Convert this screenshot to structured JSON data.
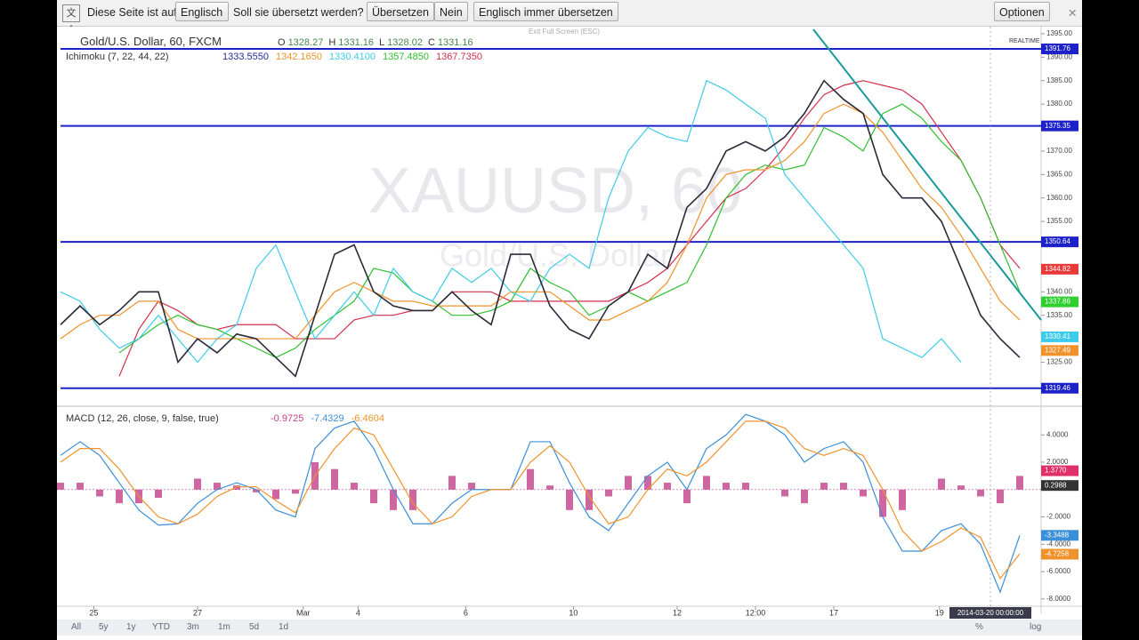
{
  "translate_bar": {
    "prompt": "Diese Seite ist auf",
    "language": "Englisch",
    "question": "Soll sie übersetzt werden?",
    "translate": "Übersetzen",
    "no": "Nein",
    "always": "Englisch immer übersetzen",
    "options": "Optionen"
  },
  "range_buttons": [
    "All",
    "5y",
    "1y",
    "YTD",
    "3m",
    "1m",
    "5d",
    "1d"
  ],
  "scale_buttons": [
    "%",
    "log"
  ],
  "chart_data": [
    {
      "type": "line",
      "title": "Gold/U.S. Dollar, 60, FXCM",
      "watermark": "XAUUSD, 60",
      "watermark_sub": "Gold/U.S. Dollar",
      "exit_fullscreen": "Exit Full Screen (ESC)",
      "realtime": "REALTIME",
      "ohlc": [
        {
          "label": "O",
          "value": "1328.27"
        },
        {
          "label": "H",
          "value": "1331.16"
        },
        {
          "label": "L",
          "value": "1328.02"
        },
        {
          "label": "C",
          "value": "1331.16"
        }
      ],
      "indicator": {
        "title": "Ichimoku (7, 22, 44, 22)",
        "values": [
          {
            "value": "1333.5550",
            "color": "#1f2f9a"
          },
          {
            "value": "1342.1650",
            "color": "#f0922b"
          },
          {
            "value": "1330.4100",
            "color": "#3ccbe8"
          },
          {
            "value": "1357.4850",
            "color": "#2fbf2f"
          },
          {
            "value": "1367.7350",
            "color": "#d22f4a"
          }
        ]
      },
      "xlim": [
        0,
        50
      ],
      "ylim": [
        1316,
        1396.5
      ],
      "xticks": [
        {
          "value": 1.7,
          "label": "25"
        },
        {
          "value": 7,
          "label": "27"
        },
        {
          "value": 12.4,
          "label": "Mar"
        },
        {
          "value": 15.2,
          "label": "4"
        },
        {
          "value": 20.7,
          "label": "6"
        },
        {
          "value": 26.2,
          "label": "10"
        },
        {
          "value": 31.5,
          "label": "12"
        },
        {
          "value": 35.5,
          "label": "12:00"
        },
        {
          "value": 39.5,
          "label": "17"
        },
        {
          "value": 44.9,
          "label": "19"
        }
      ],
      "crosshair": {
        "value": 47.5,
        "label": "2014-03-20 00:00:00"
      },
      "yticks": [
        {
          "value": 1325,
          "label": "1325.00"
        },
        {
          "value": 1330,
          "label": "1330.00"
        },
        {
          "value": 1335,
          "label": "1335.00"
        },
        {
          "value": 1340,
          "label": "1340.00"
        },
        {
          "value": 1345,
          "label": "1345.00"
        },
        {
          "value": 1350,
          "label": "1350.00"
        },
        {
          "value": 1355,
          "label": "1355.00"
        },
        {
          "value": 1360,
          "label": "1360.00"
        },
        {
          "value": 1365,
          "label": "1365.00"
        },
        {
          "value": 1370,
          "label": "1370.00"
        },
        {
          "value": 1375,
          "label": "1375.00"
        },
        {
          "value": 1380,
          "label": "1380.00"
        },
        {
          "value": 1385,
          "label": "1385.00"
        },
        {
          "value": 1390,
          "label": "1390.00"
        },
        {
          "value": 1395,
          "label": "1395.00"
        }
      ],
      "levels": [
        {
          "value": 1391.76,
          "color": "#1c22c8"
        },
        {
          "value": 1375.35,
          "color": "#1c22c8"
        },
        {
          "value": 1350.64,
          "color": "#1c22c8"
        },
        {
          "value": 1319.46,
          "color": "#1c22c8"
        }
      ],
      "price_labels": [
        {
          "value": 1344.82,
          "color": "#e83a3a"
        },
        {
          "value": 1337.86,
          "color": "#2fcf2f"
        },
        {
          "value": 1330.41,
          "color": "#3ccbe8"
        },
        {
          "value": 1327.49,
          "color": "#f0922b"
        }
      ],
      "series": [
        {
          "color": "#d22f4a",
          "values": [
            null,
            null,
            null,
            1322,
            1332,
            1338,
            1336,
            1333,
            1332,
            1333,
            1333,
            1333,
            1330,
            1330,
            1330,
            1334,
            1335,
            1335,
            1336,
            1336,
            1340,
            1340,
            1340,
            1338,
            1338,
            1338,
            1338,
            1338,
            1338,
            1340,
            1342,
            1345,
            1350,
            1355,
            1360,
            1362,
            1366,
            1371,
            1377,
            1382,
            1384,
            1385,
            1384,
            1383,
            1380,
            1374,
            1368,
            1360,
            1350,
            1345
          ]
        },
        {
          "color": "#2fbf2f",
          "values": [
            null,
            null,
            null,
            1327,
            1330,
            1333,
            1335,
            1333,
            1332,
            1330,
            1328,
            1326,
            1328,
            1332,
            1335,
            1338,
            1345,
            1344,
            1340,
            1338,
            1335,
            1335,
            1336,
            1338,
            1345,
            1342,
            1340,
            1335,
            1337,
            1340,
            1338,
            1340,
            1342,
            1350,
            1360,
            1365,
            1367,
            1366,
            1367,
            1375,
            1373,
            1370,
            1378,
            1380,
            1377,
            1372,
            1368,
            1360,
            1350,
            1340
          ]
        },
        {
          "color": "#3ccbe8",
          "values": [
            1340,
            1338,
            1332,
            1328,
            1330,
            1335,
            1330,
            1325,
            1330,
            1333,
            1345,
            1350,
            1340,
            1330,
            1335,
            1340,
            1335,
            1345,
            1340,
            1338,
            1345,
            1342,
            1345,
            1340,
            1338,
            1345,
            1348,
            1345,
            1360,
            1370,
            1375,
            1373,
            1372,
            1385,
            1383,
            1380,
            1377,
            1365,
            1360,
            1355,
            1350,
            1345,
            1330,
            1328,
            1326,
            1330,
            1325,
            null,
            null,
            null
          ]
        },
        {
          "color": "#f0922b",
          "values": [
            1330,
            1333,
            1335,
            1335,
            1338,
            1338,
            1332,
            1330,
            1330,
            1330,
            1330,
            1330,
            1330,
            1335,
            1340,
            1342,
            1340,
            1338,
            1338,
            1337,
            1337,
            1337,
            1337,
            1340,
            1340,
            1340,
            1337,
            1334,
            1334,
            1336,
            1338,
            1342,
            1350,
            1360,
            1365,
            1366,
            1366,
            1368,
            1372,
            1378,
            1380,
            1378,
            1374,
            1368,
            1362,
            1358,
            1352,
            1345,
            1338,
            1334
          ]
        },
        {
          "color": "#2a2a3a",
          "values": [
            1333,
            1337,
            1333,
            1336,
            1340,
            1340,
            1325,
            1330,
            1327,
            1331,
            1330,
            1326,
            1322,
            1335,
            1348,
            1350,
            1340,
            1337,
            1336,
            1336,
            1340,
            1336,
            1333,
            1348,
            1348,
            1337,
            1332,
            1330,
            1337,
            1340,
            1348,
            1345,
            1358,
            1362,
            1370,
            1372,
            1370,
            1373,
            1378,
            1385,
            1381,
            1378,
            1365,
            1360,
            1360,
            1355,
            1345,
            1335,
            1330,
            1326
          ]
        }
      ]
    },
    {
      "type": "line",
      "title": "MACD (12, 26, close, 9, false, true)",
      "header_values": [
        {
          "value": "-0.9725",
          "color": "#c2408a"
        },
        {
          "value": "-7.4329",
          "color": "#3b8fd8"
        },
        {
          "value": "-6.4604",
          "color": "#f0922b"
        }
      ],
      "xlim": [
        0,
        50
      ],
      "ylim": [
        -8.4,
        5.9
      ],
      "yticks": [
        {
          "value": -8,
          "label": "-8.0000"
        },
        {
          "value": -6,
          "label": "-6.0000"
        },
        {
          "value": -4,
          "label": "-4.0000"
        },
        {
          "value": -2,
          "label": "-2.0000"
        },
        {
          "value": 2,
          "label": "2.0000"
        },
        {
          "value": 4,
          "label": "4.0000"
        }
      ],
      "price_labels": [
        {
          "value": 1.377,
          "label": "1.3770",
          "color": "#e0306a"
        },
        {
          "value": 0.2988,
          "label": "0.2988",
          "color": "#333333"
        },
        {
          "value": -3.3488,
          "label": "-3.3488",
          "color": "#3b8fd8"
        },
        {
          "value": -4.7258,
          "label": "-4.7258",
          "color": "#f0922b"
        }
      ],
      "histogram": {
        "color": "#c2408a",
        "values": [
          0.5,
          0.5,
          -0.5,
          -1,
          -1,
          -0.6,
          0,
          0.8,
          0.5,
          0.3,
          -0.2,
          -0.7,
          -0.3,
          2,
          1.5,
          0.5,
          -1,
          -1.5,
          -1.5,
          0,
          1,
          0.5,
          0,
          0,
          1.5,
          0.3,
          -1.5,
          -1.5,
          -0.5,
          1,
          1,
          0.5,
          -1,
          1,
          0.5,
          0.5,
          0,
          -0.5,
          -1,
          0.5,
          0.5,
          -0.5,
          -2,
          -1.5,
          0,
          0.8,
          0.3,
          -0.5,
          -1,
          1
        ]
      },
      "series": [
        {
          "color": "#3b8fd8",
          "values": [
            2.5,
            3.5,
            2.5,
            0.5,
            -1.5,
            -2.6,
            -2.5,
            -1,
            0,
            0.5,
            0,
            -1.5,
            -2,
            3,
            4.5,
            5,
            3,
            0,
            -2.5,
            -2.5,
            -1,
            0,
            0,
            0,
            3.5,
            3.5,
            0.5,
            -2,
            -3,
            -1,
            1,
            2,
            0,
            3,
            4,
            5.5,
            5,
            4,
            2,
            3,
            3.5,
            2,
            -2,
            -4.5,
            -4.5,
            -3,
            -2.5,
            -4,
            -7.5,
            -3.35
          ]
        },
        {
          "color": "#f0922b",
          "values": [
            2,
            3,
            3,
            1.5,
            -0.5,
            -2,
            -2.5,
            -1.8,
            -0.5,
            0.2,
            0.2,
            -0.8,
            -1.7,
            1,
            3,
            4.5,
            4,
            1.5,
            -1,
            -2.5,
            -2,
            -0.5,
            0,
            0,
            2,
            3.2,
            2,
            -0.5,
            -2.5,
            -2,
            0,
            1.5,
            1,
            2,
            3.5,
            5,
            5,
            4.5,
            3,
            2.5,
            3,
            2.5,
            0,
            -3,
            -4.5,
            -3.8,
            -2.8,
            -3.5,
            -6.5,
            -4.7
          ]
        }
      ]
    }
  ]
}
